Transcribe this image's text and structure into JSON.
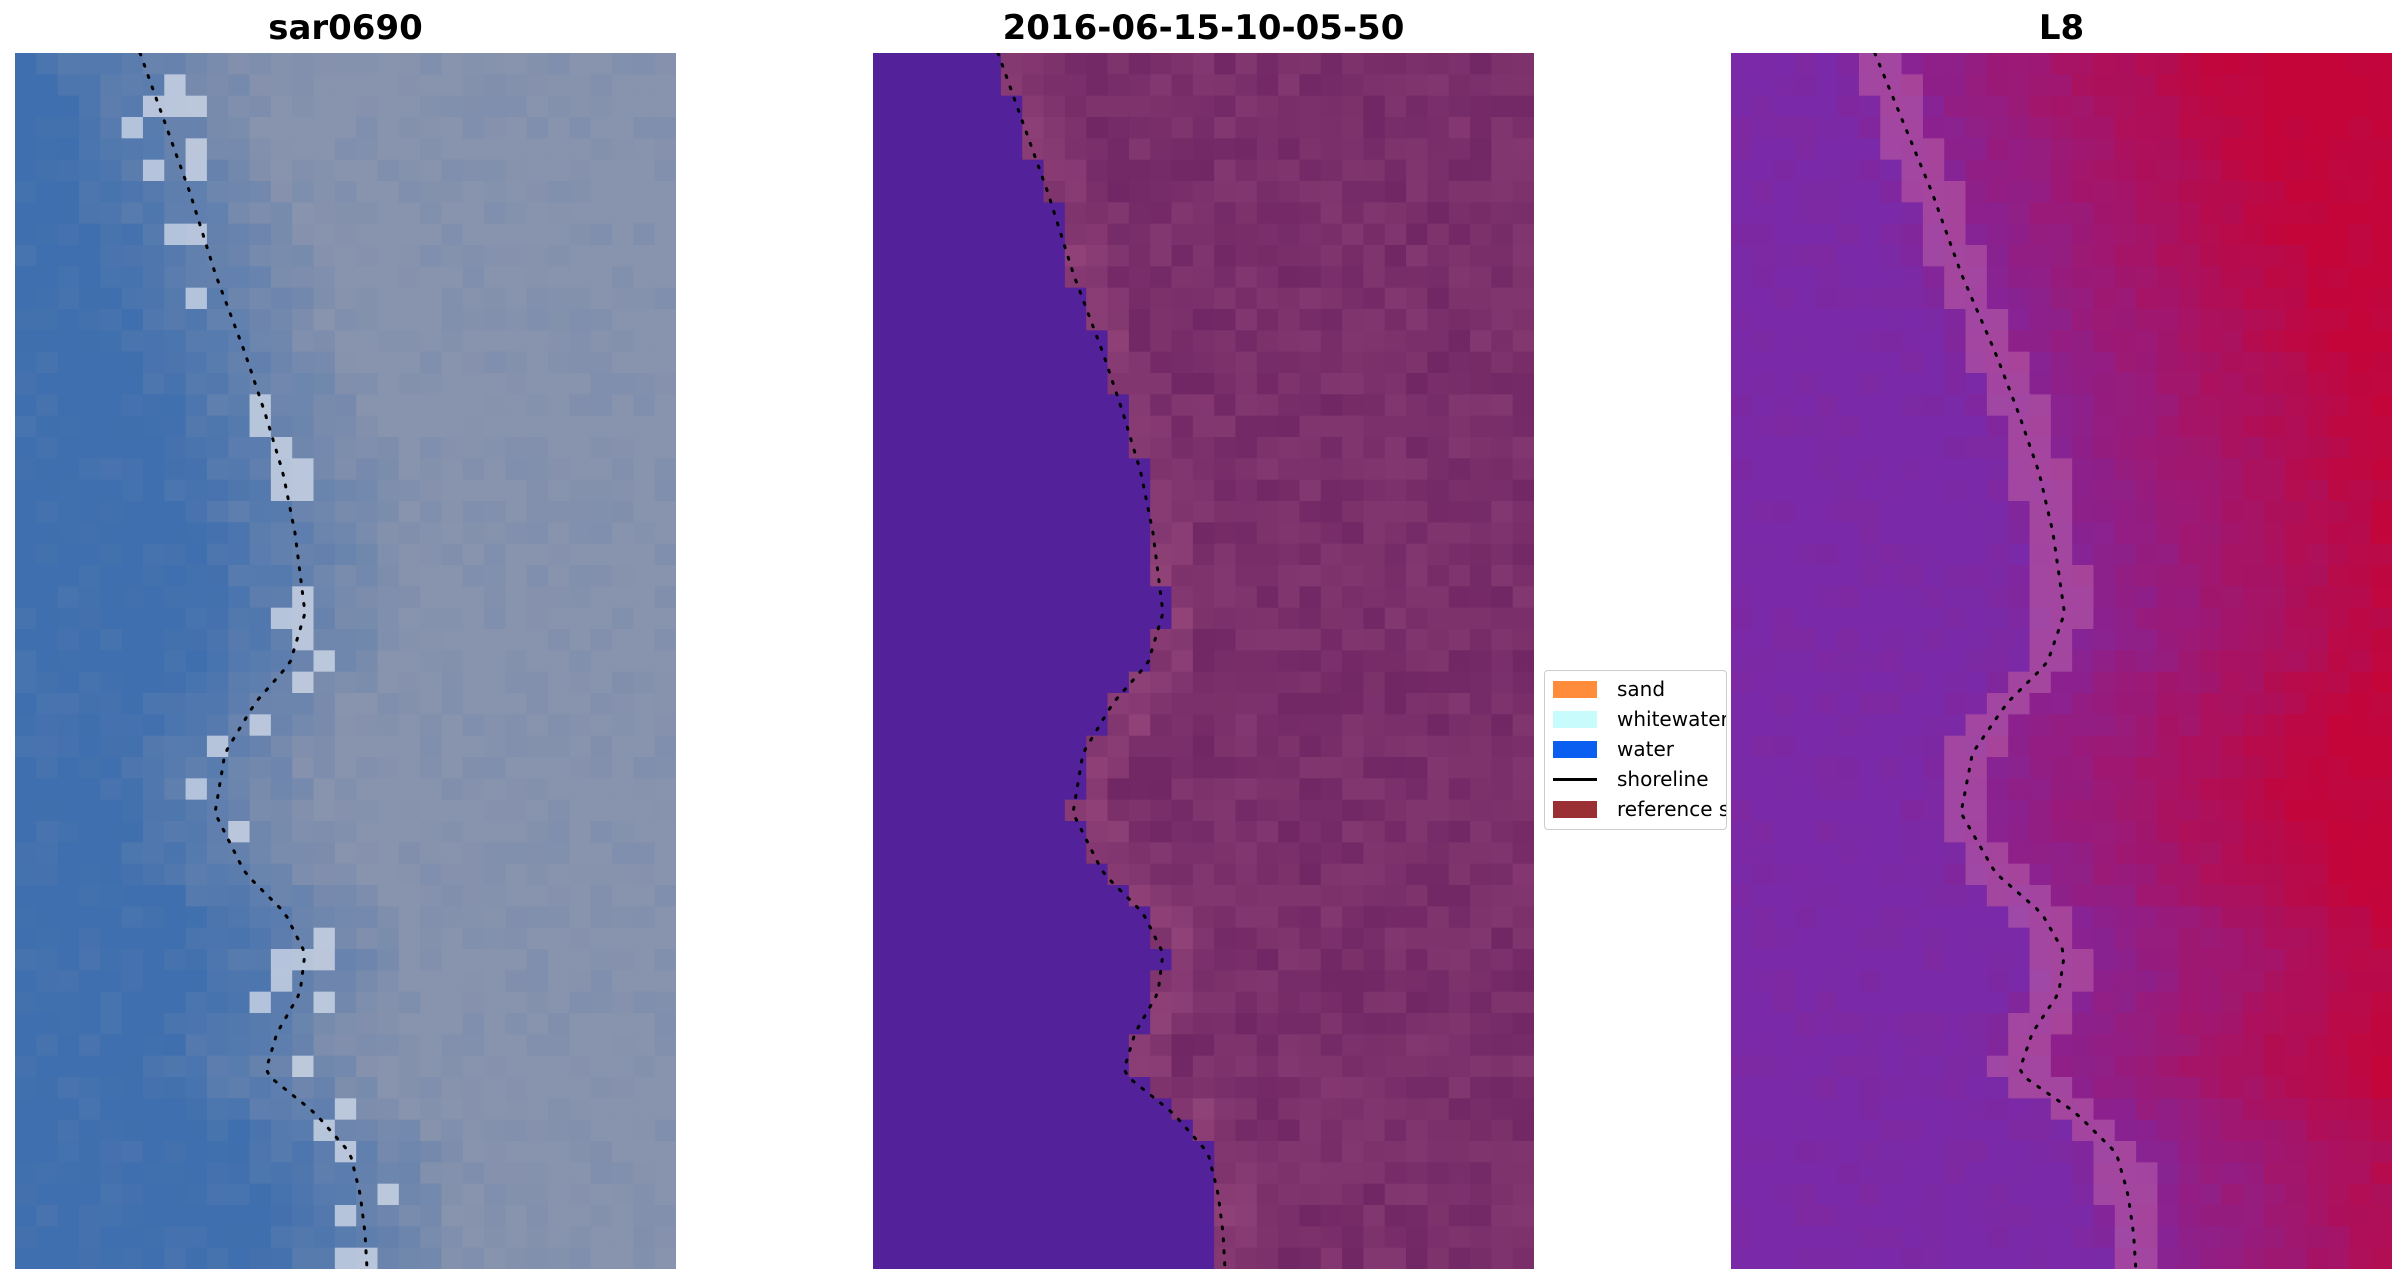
{
  "panels": [
    {
      "title": "sar0690",
      "kind": "rgb"
    },
    {
      "title": "2016-06-15-10-05-50",
      "kind": "classified"
    },
    {
      "title": "L8",
      "kind": "index"
    }
  ],
  "legend": {
    "items": [
      {
        "label": "sand",
        "color": "#ff8c3a",
        "type": "patch"
      },
      {
        "label": "whitewater",
        "color": "#c8fcfc",
        "type": "patch"
      },
      {
        "label": "water",
        "color": "#0a5ef0",
        "type": "patch"
      },
      {
        "label": "shoreline",
        "color": "#000000",
        "type": "line"
      },
      {
        "label": "reference s",
        "color": "#9a3034",
        "type": "patch"
      }
    ]
  },
  "colors": {
    "water_class": "#53229b",
    "land_class": "#7a2f6a",
    "rgb_water": "#3f6fae",
    "rgb_land": "#8893ad",
    "index_low": "#7a2aa8",
    "index_high": "#c3053a"
  }
}
